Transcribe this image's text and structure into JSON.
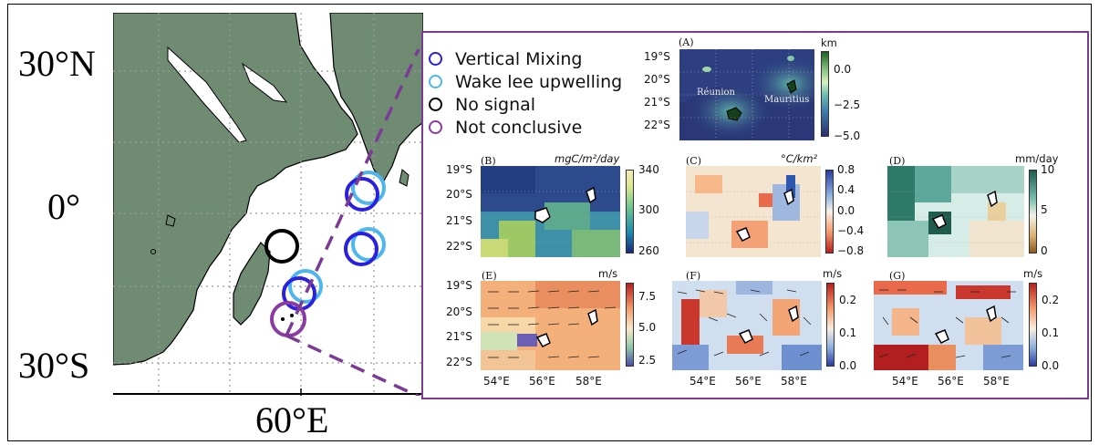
{
  "map": {
    "lat_labels": [
      "30°N",
      "0°",
      "30°S"
    ],
    "lon_label": "60°E",
    "colors": {
      "land": "#6f8c73",
      "ocean": "#ffffff",
      "grid": "#999999"
    }
  },
  "legend": [
    {
      "label": "Vertical Mixing",
      "color": "#2b1fe0"
    },
    {
      "label": "Wake lee upwelling",
      "color": "#4db6ee"
    },
    {
      "label": "No signal",
      "color": "#000000"
    },
    {
      "label": "Not conclusive",
      "color": "#8a3aa0"
    }
  ],
  "panels": {
    "A": {
      "label": "(A)",
      "unit": "km",
      "ticks": [
        "0.0",
        "−2.5",
        "−5.0"
      ],
      "lat_ticks": [
        "19°S",
        "20°S",
        "21°S",
        "22°S"
      ],
      "islands": [
        "Réunion",
        "Mauritius"
      ]
    },
    "B": {
      "label": "(B)",
      "unit": "mgC/m²/day",
      "ticks": [
        "340",
        "300",
        "260"
      ],
      "lat_ticks": [
        "19°S",
        "20°S",
        "21°S",
        "22°S"
      ]
    },
    "C": {
      "label": "(C)",
      "unit": "°C/km²",
      "ticks": [
        "0.8",
        "0.4",
        "0.0",
        "−0.4",
        "−0.8"
      ]
    },
    "D": {
      "label": "(D)",
      "unit": "mm/day",
      "ticks": [
        "10",
        "5",
        "0"
      ]
    },
    "E": {
      "label": "(E)",
      "unit": "m/s",
      "ticks": [
        "7.5",
        "5.0",
        "2.5"
      ],
      "lat_ticks": [
        "19°S",
        "20°S",
        "21°S",
        "22°S"
      ],
      "lon_ticks": [
        "54°E",
        "56°E",
        "58°E"
      ]
    },
    "F": {
      "label": "(F)",
      "unit": "m/s",
      "ticks": [
        "0.2",
        "0.1",
        "0.0"
      ],
      "lon_ticks": [
        "54°E",
        "56°E",
        "58°E"
      ]
    },
    "G": {
      "label": "(G)",
      "unit": "m/s",
      "ticks": [
        "0.2",
        "0.1",
        "0.0"
      ],
      "lon_ticks": [
        "54°E",
        "56°E",
        "58°E"
      ]
    }
  }
}
